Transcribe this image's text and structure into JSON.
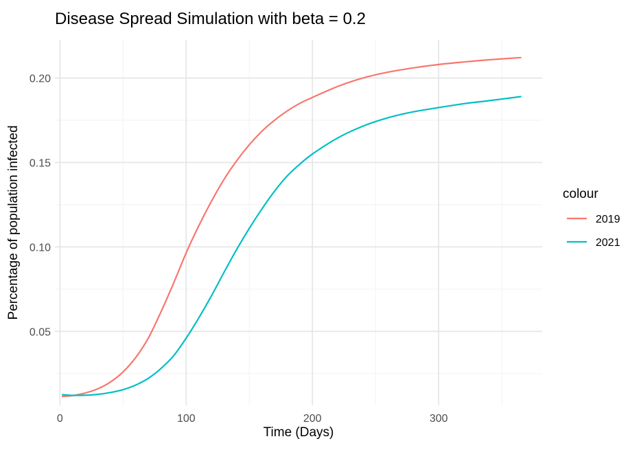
{
  "chart_data": {
    "type": "line",
    "title": "Disease Spread Simulation with beta = 0.2",
    "xlabel": "Time (Days)",
    "ylabel": "Percentage of population infected",
    "xlim": [
      -4,
      382
    ],
    "ylim": [
      0.0062,
      0.2226
    ],
    "x_ticks": [
      0,
      100,
      200,
      300
    ],
    "x_tick_labels": [
      "0",
      "100",
      "200",
      "300"
    ],
    "x_minor_ticks": [
      50,
      150,
      250,
      350
    ],
    "y_ticks": [
      0.05,
      0.1,
      0.15,
      0.2
    ],
    "y_tick_labels": [
      "0.05",
      "0.10",
      "0.15",
      "0.20"
    ],
    "y_minor_ticks": [
      0.025,
      0.075,
      0.125,
      0.175
    ],
    "grid": true,
    "legend": {
      "title": "colour",
      "position": "right"
    },
    "series": [
      {
        "name": "2019",
        "color": "#F8766D",
        "x": [
          2,
          10,
          20,
          30,
          40,
          50,
          60,
          70,
          80,
          90,
          100,
          110,
          120,
          130,
          140,
          150,
          160,
          170,
          180,
          190,
          200,
          220,
          240,
          260,
          280,
          300,
          320,
          340,
          365
        ],
        "y": [
          0.0115,
          0.012,
          0.0135,
          0.016,
          0.02,
          0.026,
          0.0345,
          0.046,
          0.0615,
          0.0785,
          0.0965,
          0.1125,
          0.127,
          0.14,
          0.151,
          0.1605,
          0.1685,
          0.175,
          0.1805,
          0.185,
          0.1885,
          0.195,
          0.2,
          0.2035,
          0.206,
          0.208,
          0.2095,
          0.2108,
          0.2121
        ]
      },
      {
        "name": "2021",
        "color": "#00BFC4",
        "x": [
          2,
          10,
          20,
          30,
          40,
          50,
          60,
          70,
          80,
          90,
          100,
          110,
          120,
          130,
          140,
          150,
          160,
          170,
          180,
          190,
          200,
          220,
          240,
          260,
          280,
          300,
          320,
          340,
          365
        ],
        "y": [
          0.0125,
          0.0121,
          0.0122,
          0.0127,
          0.0138,
          0.0155,
          0.0182,
          0.0222,
          0.028,
          0.0355,
          0.046,
          0.058,
          0.071,
          0.085,
          0.0985,
          0.111,
          0.1225,
          0.133,
          0.142,
          0.149,
          0.155,
          0.1645,
          0.1715,
          0.1765,
          0.18,
          0.1825,
          0.1848,
          0.1866,
          0.189
        ]
      }
    ]
  }
}
